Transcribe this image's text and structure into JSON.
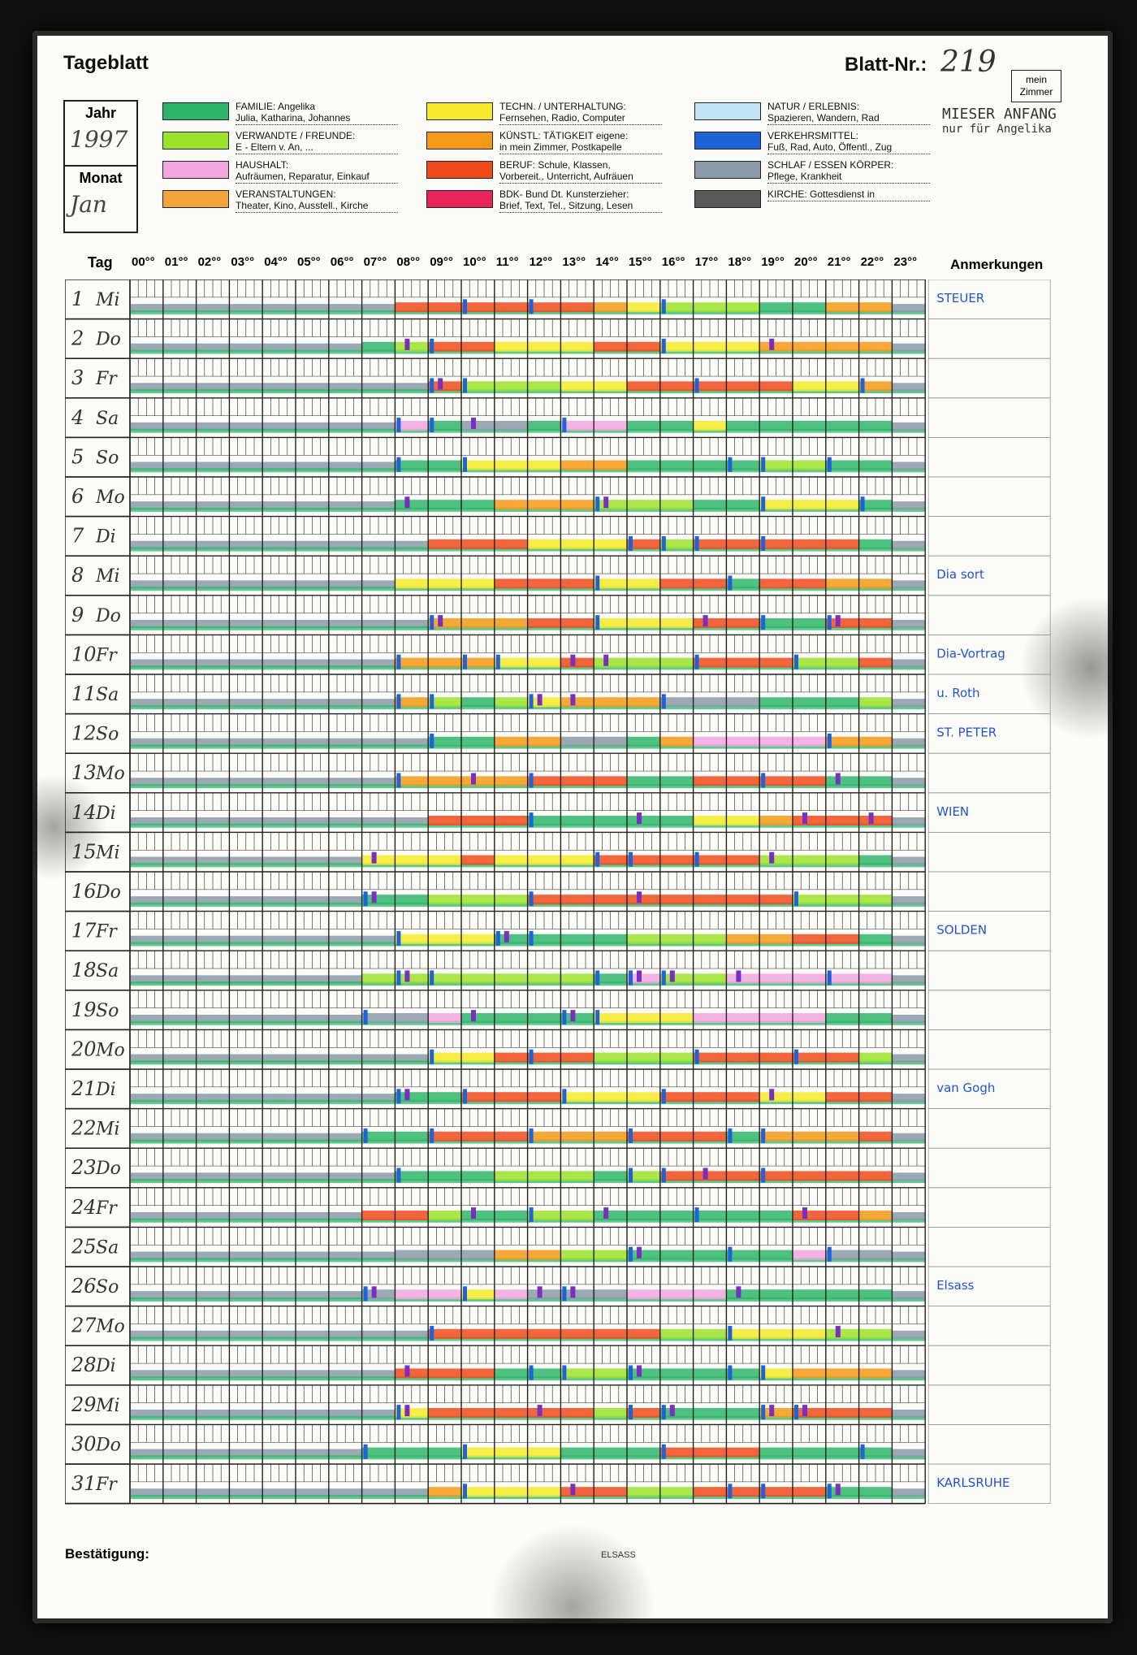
{
  "form": {
    "title": "Tageblatt",
    "sheet_number_label": "Blatt-Nr.:",
    "sheet_number": "219",
    "room_label": "mein Zimmer",
    "year_label": "Jahr",
    "year": "1997",
    "month_label": "Monat",
    "month": "Jan",
    "day_col_label": "Tag",
    "remarks_label": "Anmerkungen",
    "confirmation_label": "Bestätigung:",
    "footer_note": "ELSASS"
  },
  "legend": [
    {
      "id": "familie",
      "title": "FAMILIE:",
      "line1": "Angelika",
      "line2": "Julia, Katharina, Johannes",
      "color": "#2fb56a"
    },
    {
      "id": "verwandte",
      "title": "VERWANDTE / FREUNDE:",
      "line1": "",
      "line2": "E - Eltern v. An, ...",
      "color": "#9be22a"
    },
    {
      "id": "haushalt",
      "title": "HAUSHALT:",
      "line1": "",
      "line2": "Aufräumen, Reparatur, Einkauf",
      "color": "#f2a6e0"
    },
    {
      "id": "veranstaltungen",
      "title": "VERANSTALTUNGEN:",
      "line1": "",
      "line2": "Theater, Kino, Ausstell., Kirche",
      "color": "#f4a53a"
    },
    {
      "id": "techn",
      "title": "TECHN. / UNTERHALTUNG:",
      "line1": "",
      "line2": "Fernsehen, Radio, Computer",
      "color": "#f6ea2a"
    },
    {
      "id": "kuenstl",
      "title": "KÜNSTL: TÄTIGKEIT eigene:",
      "line1": "",
      "line2": "in mein Zimmer, Postkapelle",
      "color": "#f59a16"
    },
    {
      "id": "beruf",
      "title": "BERUF:",
      "line1": "Schule, Klassen,",
      "line2": "Vorbereit., Unterricht, Aufräuen",
      "color": "#f04a1c"
    },
    {
      "id": "bdk",
      "title": "BDK- Bund Dt. Kunsterzieher:",
      "line1": "",
      "line2": "Brief, Text, Tel., Sitzung, Lesen",
      "color": "#e8245a"
    },
    {
      "id": "natur",
      "title": "NATUR / ERLEBNIS:",
      "line1": "",
      "line2": "Spazieren, Wandern, Rad",
      "color": "#bfe3f2"
    },
    {
      "id": "verkehr",
      "title": "VERKEHRSMITTEL:",
      "line1": "",
      "line2": "Fuß, Rad, Auto, Öffentl., Zug",
      "color": "#1f63d9"
    },
    {
      "id": "schlaf",
      "title": "SCHLAF / ESSEN",
      "line1": "KÖRPER:",
      "line2": "Pflege, Krankheit",
      "color": "#8a9aa8"
    },
    {
      "id": "kirche",
      "title": "KIRCHE:",
      "line1": "Gottesdienst in",
      "line2": "",
      "color": "#5a5a5a"
    }
  ],
  "top_notes": {
    "line1": "MIESER ANFANG",
    "line2": "nur für Angelika"
  },
  "hours": [
    "00°°",
    "01°°",
    "02°°",
    "03°°",
    "04°°",
    "05°°",
    "06°°",
    "07°°",
    "08°°",
    "09°°",
    "10°°",
    "11°°",
    "12°°",
    "13°°",
    "14°°",
    "15°°",
    "16°°",
    "17°°",
    "18°°",
    "19°°",
    "20°°",
    "21°°",
    "22°°",
    "23°°"
  ],
  "days": [
    {
      "d": "1",
      "wd": "Mi",
      "note": "STEUER"
    },
    {
      "d": "2",
      "wd": "Do",
      "note": ""
    },
    {
      "d": "3",
      "wd": "Fr",
      "note": ""
    },
    {
      "d": "4",
      "wd": "Sa",
      "note": ""
    },
    {
      "d": "5",
      "wd": "So",
      "note": ""
    },
    {
      "d": "6",
      "wd": "Mo",
      "note": ""
    },
    {
      "d": "7",
      "wd": "Di",
      "note": ""
    },
    {
      "d": "8",
      "wd": "Mi",
      "note": "Dia sort"
    },
    {
      "d": "9",
      "wd": "Do",
      "note": ""
    },
    {
      "d": "10",
      "wd": "Fr",
      "note": "Dia-Vortrag"
    },
    {
      "d": "11",
      "wd": "Sa",
      "note": "u. Roth"
    },
    {
      "d": "12",
      "wd": "So",
      "note": "ST. PETER"
    },
    {
      "d": "13",
      "wd": "Mo",
      "note": ""
    },
    {
      "d": "14",
      "wd": "Di",
      "note": "WIEN"
    },
    {
      "d": "15",
      "wd": "Mi",
      "note": ""
    },
    {
      "d": "16",
      "wd": "Do",
      "note": ""
    },
    {
      "d": "17",
      "wd": "Fr",
      "note": "SOLDEN"
    },
    {
      "d": "18",
      "wd": "Sa",
      "note": ""
    },
    {
      "d": "19",
      "wd": "So",
      "note": ""
    },
    {
      "d": "20",
      "wd": "Mo",
      "note": ""
    },
    {
      "d": "21",
      "wd": "Di",
      "note": "van Gogh"
    },
    {
      "d": "22",
      "wd": "Mi",
      "note": ""
    },
    {
      "d": "23",
      "wd": "Do",
      "note": ""
    },
    {
      "d": "24",
      "wd": "Fr",
      "note": ""
    },
    {
      "d": "25",
      "wd": "Sa",
      "note": ""
    },
    {
      "d": "26",
      "wd": "So",
      "note": "Elsass"
    },
    {
      "d": "27",
      "wd": "Mo",
      "note": ""
    },
    {
      "d": "28",
      "wd": "Di",
      "note": ""
    },
    {
      "d": "29",
      "wd": "Mi",
      "note": ""
    },
    {
      "d": "30",
      "wd": "Do",
      "note": ""
    },
    {
      "d": "31",
      "wd": "Fr",
      "note": "KARLSRUHE"
    }
  ],
  "colors": {
    "sleep": "#8a9aa8",
    "family": "#2fb56a",
    "work": "#f04a1c",
    "art": "#f59a16",
    "tech": "#f6ea2a",
    "friends": "#9be22a",
    "house": "#f2a6e0",
    "transport": "#1f63d9",
    "bdk": "#e8245a",
    "purple": "#7b2fbe",
    "grid": "#222222"
  }
}
